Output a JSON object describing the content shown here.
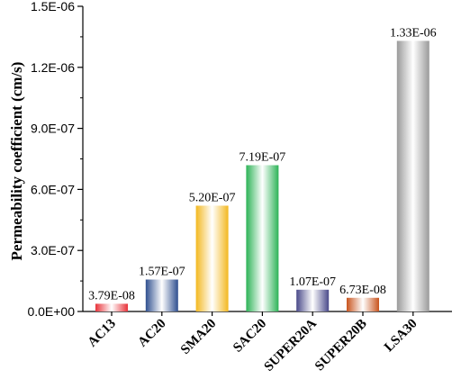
{
  "chart_data": {
    "type": "bar",
    "title": "",
    "xlabel": "",
    "ylabel": "Permeability coefficient (cm/s)",
    "ylim": [
      0,
      1.5e-06
    ],
    "y_ticks": [
      0,
      3e-07,
      6e-07,
      9e-07,
      1.2e-06,
      1.5e-06
    ],
    "y_tick_labels": [
      "0.0E+00",
      "3.0E-07",
      "6.0E-07",
      "9.0E-07",
      "1.2E-06",
      "1.5E-06"
    ],
    "grid": false,
    "legend": "none",
    "categories": [
      "AC13",
      "AC20",
      "SMA20",
      "SAC20",
      "SUPER20A",
      "SUPER20B",
      "LSA30"
    ],
    "values": [
      3.79e-08,
      1.57e-07,
      5.2e-07,
      7.19e-07,
      1.07e-07,
      6.73e-08,
      1.33e-06
    ],
    "data_labels": [
      "3.79E-08",
      "1.57E-07",
      "5.20E-07",
      "7.19E-07",
      "1.07E-07",
      "6.73E-08",
      "1.33E-06"
    ],
    "colors": [
      "#e8333a",
      "#2f4f8f",
      "#f3b820",
      "#2db357",
      "#4a4a8a",
      "#c8541e",
      "#9a9a9a"
    ]
  }
}
